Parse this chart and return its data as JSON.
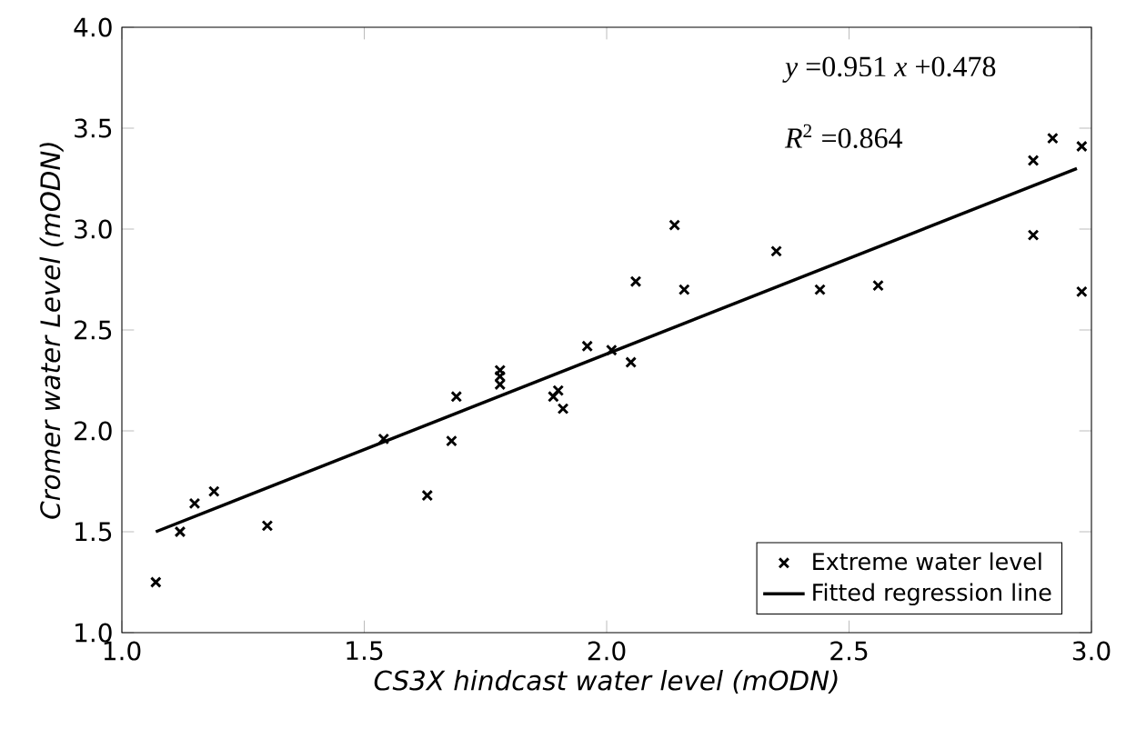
{
  "chart_data": {
    "type": "scatter",
    "xlabel": "CS3X hindcast water level (mODN)",
    "ylabel": "Cromer water Level (mODN)",
    "annotations": [
      "*y* =0.951 *x* +0.478",
      "*R*$^{2}$ =0.864"
    ],
    "series": [
      {
        "name": "Extreme water level",
        "marker": "cross",
        "color": "#000000",
        "x": [
          1.07,
          1.12,
          1.15,
          1.19,
          1.3,
          1.54,
          1.63,
          1.68,
          1.69,
          1.78,
          1.78,
          1.78,
          1.89,
          1.9,
          1.91,
          1.96,
          2.01,
          2.05,
          2.06,
          2.14,
          2.16,
          2.35,
          2.44,
          2.56,
          2.88,
          2.88,
          2.92,
          2.98,
          2.98
        ],
        "values": [
          1.25,
          1.5,
          1.64,
          1.7,
          1.53,
          1.96,
          1.68,
          1.95,
          2.17,
          2.3,
          2.27,
          2.23,
          2.17,
          2.2,
          2.11,
          2.42,
          2.4,
          2.34,
          2.74,
          3.02,
          2.7,
          2.89,
          2.7,
          2.72,
          3.34,
          2.97,
          3.45,
          3.41,
          2.69
        ]
      },
      {
        "name": "Fitted regression line",
        "type": "line",
        "marker": "none",
        "color": "#000000",
        "x": [
          1.07,
          2.97
        ],
        "values": [
          1.5,
          3.3
        ]
      }
    ],
    "xlim": [
      1.0,
      3.0
    ],
    "ylim": [
      1.0,
      4.0
    ],
    "xticks": [
      {
        "value": 1.0,
        "label": "1.0"
      },
      {
        "value": 1.5,
        "label": "1.5"
      },
      {
        "value": 2.0,
        "label": "2.0"
      },
      {
        "value": 2.5,
        "label": "2.5"
      },
      {
        "value": 3.0,
        "label": "3.0"
      }
    ],
    "yticks": [
      {
        "value": 1.0,
        "label": "1.0"
      },
      {
        "value": 1.5,
        "label": "1.5"
      },
      {
        "value": 2.0,
        "label": "2.0"
      },
      {
        "value": 2.5,
        "label": "2.5"
      },
      {
        "value": 3.0,
        "label": "3.0"
      },
      {
        "value": 3.5,
        "label": "3.5"
      },
      {
        "value": 4.0,
        "label": "4.0"
      }
    ],
    "line_style": "solid",
    "legend": "bottom right",
    "grid": false
  }
}
